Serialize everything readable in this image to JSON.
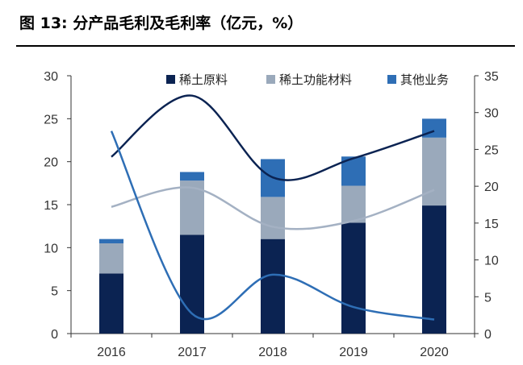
{
  "title": "图 13:  分产品毛利及毛利率（亿元，%）",
  "chart_data": {
    "type": "bar",
    "categories": [
      "2016",
      "2017",
      "2018",
      "2019",
      "2020"
    ],
    "stacked": true,
    "series": [
      {
        "name": "稀土原料",
        "axis": "left",
        "color": "#0b2352",
        "values": [
          7.0,
          11.5,
          11.0,
          12.9,
          14.9
        ]
      },
      {
        "name": "稀土功能材料",
        "axis": "left",
        "color": "#9aa9bb",
        "values": [
          3.5,
          6.3,
          4.9,
          4.3,
          7.9
        ]
      },
      {
        "name": "其他业务",
        "axis": "left",
        "color": "#2e6eb5",
        "values": [
          0.5,
          1.0,
          4.4,
          3.4,
          2.2
        ]
      }
    ],
    "line_series": [
      {
        "axis": "right",
        "color": "#0b2352",
        "values": [
          24.0,
          32.3,
          21.2,
          23.8,
          27.5
        ]
      },
      {
        "axis": "right",
        "color": "#a4b1c3",
        "values": [
          17.2,
          19.8,
          14.5,
          15.3,
          19.5
        ]
      },
      {
        "axis": "right",
        "color": "#2e6eb5",
        "values": [
          27.5,
          2.7,
          8.0,
          3.6,
          1.9
        ]
      }
    ],
    "yleft": {
      "min": 0,
      "max": 30,
      "ticks": [
        0,
        5,
        10,
        15,
        20,
        25,
        30
      ]
    },
    "yright": {
      "min": 0,
      "max": 35,
      "ticks": [
        0,
        5,
        10,
        15,
        20,
        25,
        30,
        35
      ]
    },
    "grid": false,
    "legend_position": "top"
  }
}
